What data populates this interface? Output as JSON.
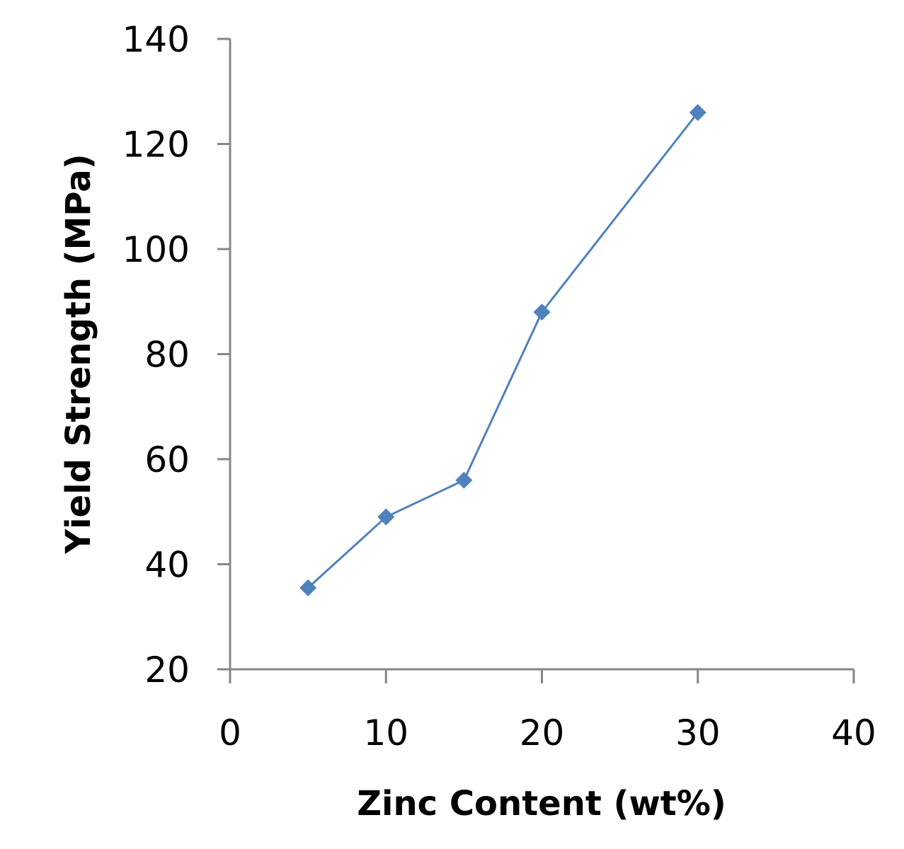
{
  "chart_data": {
    "type": "line",
    "xlabel": "Zinc Content (wt%)",
    "ylabel": "Yield Strength (MPa)",
    "xlim": [
      0,
      40
    ],
    "ylim": [
      20,
      140
    ],
    "xticks": [
      0,
      10,
      20,
      30,
      40
    ],
    "yticks": [
      20,
      40,
      60,
      80,
      100,
      120,
      140
    ],
    "grid": false,
    "legend": "none",
    "series": [
      {
        "x": [
          5,
          10,
          15,
          20,
          30
        ],
        "y": [
          35.5,
          49,
          56,
          88,
          126
        ],
        "color": "#4f81bd",
        "marker": "diamond"
      }
    ]
  }
}
